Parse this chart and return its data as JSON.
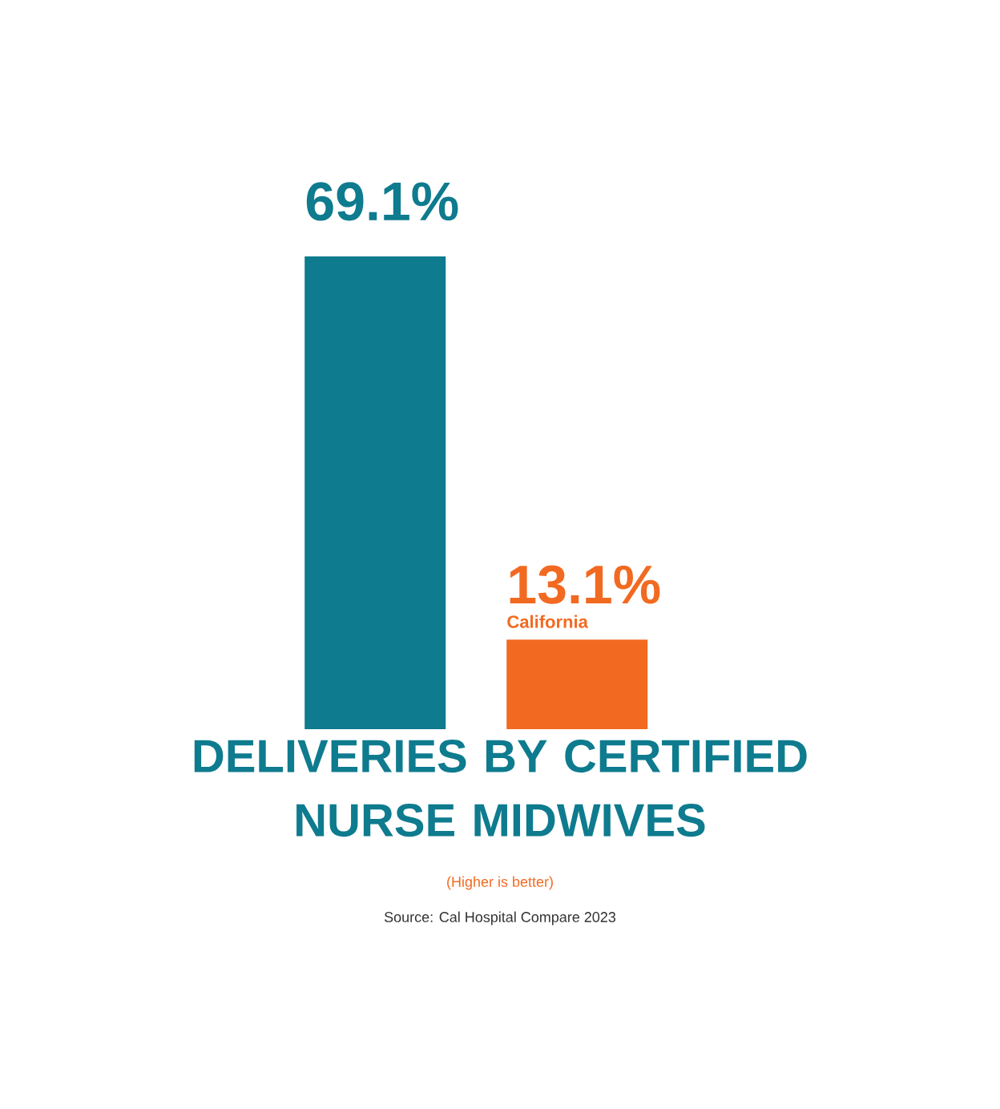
{
  "chart_data": {
    "type": "bar",
    "title": "DELIVERIES BY CERTIFIED NURSE MIDWIVES",
    "subtitle": "(Higher is better)",
    "annotations": [
      "Source: Cal Hospital Compare 2023"
    ],
    "categories": [
      null,
      "California"
    ],
    "values": [
      69.1,
      13.1
    ],
    "value_labels": [
      "69.1%",
      "13.1%"
    ],
    "colors": [
      "#0e7b8e",
      "#f26a21"
    ]
  }
}
